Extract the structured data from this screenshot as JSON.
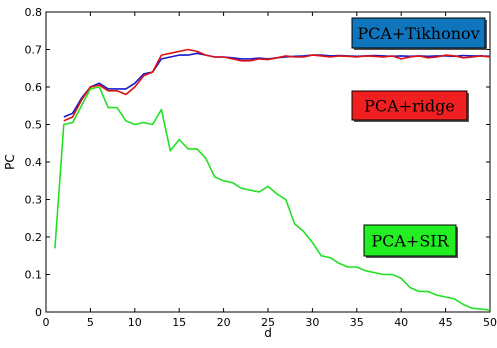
{
  "chart_data": {
    "type": "line",
    "xlabel": "d",
    "ylabel": "PC",
    "xlim": [
      0,
      50
    ],
    "ylim": [
      0,
      0.8
    ],
    "xticks": [
      0,
      5,
      10,
      15,
      20,
      25,
      30,
      35,
      40,
      45,
      50
    ],
    "yticks": [
      0,
      0.1,
      0.2,
      0.3,
      0.4,
      0.5,
      0.6,
      0.7,
      0.8
    ],
    "xtick_labels": [
      "0",
      "5",
      "10",
      "15",
      "20",
      "25",
      "30",
      "35",
      "40",
      "45",
      "50"
    ],
    "ytick_labels": [
      "0",
      "0.1",
      "0.2",
      "0.3",
      "0.4",
      "0.5",
      "0.6",
      "0.7",
      "0.8"
    ],
    "grid": false,
    "series": [
      {
        "name": "PCA+Tikhonov",
        "color": "#1a1acc",
        "x": [
          2,
          3,
          4,
          5,
          6,
          7,
          8,
          9,
          10,
          11,
          12,
          13,
          14,
          15,
          16,
          17,
          18,
          19,
          20,
          21,
          22,
          23,
          24,
          25,
          26,
          27,
          28,
          29,
          30,
          31,
          32,
          33,
          34,
          35,
          36,
          37,
          38,
          39,
          40,
          41,
          42,
          43,
          44,
          45,
          46,
          47,
          48,
          49,
          50
        ],
        "values": [
          0.52,
          0.53,
          0.57,
          0.6,
          0.61,
          0.595,
          0.595,
          0.595,
          0.61,
          0.635,
          0.64,
          0.675,
          0.68,
          0.685,
          0.685,
          0.69,
          0.685,
          0.68,
          0.68,
          0.678,
          0.675,
          0.675,
          0.677,
          0.675,
          0.678,
          0.68,
          0.682,
          0.683,
          0.685,
          0.685,
          0.683,
          0.684,
          0.683,
          0.682,
          0.683,
          0.684,
          0.683,
          0.682,
          0.683,
          0.682,
          0.683,
          0.682,
          0.683,
          0.683,
          0.682,
          0.684,
          0.683,
          0.683,
          0.682
        ]
      },
      {
        "name": "PCA+ridge",
        "color": "#e01010",
        "x": [
          2,
          3,
          4,
          5,
          6,
          7,
          8,
          9,
          10,
          11,
          12,
          13,
          14,
          15,
          16,
          17,
          18,
          19,
          20,
          21,
          22,
          23,
          24,
          25,
          26,
          27,
          28,
          29,
          30,
          31,
          32,
          33,
          34,
          35,
          36,
          37,
          38,
          39,
          40,
          41,
          42,
          43,
          44,
          45,
          46,
          47,
          48,
          49,
          50
        ],
        "values": [
          0.51,
          0.52,
          0.565,
          0.6,
          0.605,
          0.59,
          0.59,
          0.58,
          0.6,
          0.63,
          0.64,
          0.685,
          0.69,
          0.695,
          0.7,
          0.695,
          0.685,
          0.68,
          0.68,
          0.675,
          0.67,
          0.67,
          0.675,
          0.673,
          0.678,
          0.683,
          0.68,
          0.68,
          0.685,
          0.683,
          0.68,
          0.683,
          0.682,
          0.68,
          0.683,
          0.682,
          0.68,
          0.683,
          0.675,
          0.68,
          0.683,
          0.678,
          0.68,
          0.685,
          0.683,
          0.678,
          0.68,
          0.683,
          0.68
        ]
      },
      {
        "name": "PCA+SIR",
        "color": "#22e022",
        "x": [
          1,
          2,
          3,
          4,
          5,
          6,
          7,
          8,
          9,
          10,
          11,
          12,
          13,
          14,
          15,
          16,
          17,
          18,
          19,
          20,
          21,
          22,
          23,
          24,
          25,
          26,
          27,
          28,
          29,
          30,
          31,
          32,
          33,
          34,
          35,
          36,
          37,
          38,
          39,
          40,
          41,
          42,
          43,
          44,
          45,
          46,
          47,
          48,
          49,
          50
        ],
        "values": [
          0.17,
          0.5,
          0.505,
          0.55,
          0.595,
          0.6,
          0.545,
          0.545,
          0.51,
          0.5,
          0.505,
          0.5,
          0.54,
          0.43,
          0.46,
          0.435,
          0.435,
          0.41,
          0.36,
          0.35,
          0.345,
          0.33,
          0.325,
          0.32,
          0.335,
          0.315,
          0.3,
          0.235,
          0.215,
          0.185,
          0.15,
          0.145,
          0.13,
          0.12,
          0.12,
          0.11,
          0.105,
          0.1,
          0.1,
          0.09,
          0.065,
          0.055,
          0.055,
          0.045,
          0.04,
          0.035,
          0.02,
          0.01,
          0.008,
          0.005
        ]
      }
    ],
    "legends": [
      {
        "label": "PCA+Tikhonov",
        "bg": "#0f75bd"
      },
      {
        "label": "PCA+ridge",
        "bg": "#f02020"
      },
      {
        "label": "PCA+SIR",
        "bg": "#22ee22"
      }
    ]
  }
}
